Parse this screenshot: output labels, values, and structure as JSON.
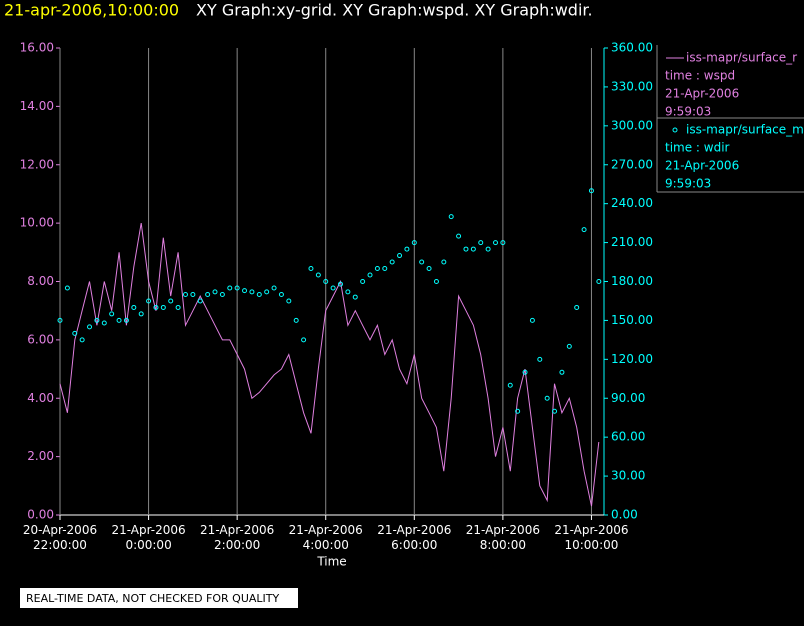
{
  "chart_data": {
    "type": "xy",
    "title_time": "21-apr-2006,10:00:00",
    "title": "XY Graph:xy-grid.  XY Graph:wspd.  XY Graph:wdir.",
    "x_label": "Time",
    "footer": "REAL-TIME DATA, NOT CHECKED FOR QUALITY",
    "grid": true,
    "xlim": [
      "2006-04-20T22:00",
      "2006-04-21T10:17"
    ],
    "xticks": [
      {
        "value": "2006-04-20T22:00",
        "label": "20-Apr-2006 22:00:00"
      },
      {
        "value": "2006-04-21T00:00",
        "label": "21-Apr-2006 0:00:00"
      },
      {
        "value": "2006-04-21T02:00",
        "label": "21-Apr-2006 2:00:00"
      },
      {
        "value": "2006-04-21T04:00",
        "label": "21-Apr-2006 4:00:00"
      },
      {
        "value": "2006-04-21T06:00",
        "label": "21-Apr-2006 6:00:00"
      },
      {
        "value": "2006-04-21T08:00",
        "label": "21-Apr-2006 8:00:00"
      },
      {
        "value": "2006-04-21T10:00",
        "label": "21-Apr-2006 10:00:00"
      }
    ],
    "ylim": [
      0,
      16
    ],
    "yticks": [
      {
        "value": 0,
        "label": "0.00"
      },
      {
        "value": 2,
        "label": "2.00"
      },
      {
        "value": 4,
        "label": "4.00"
      },
      {
        "value": 6,
        "label": "6.00"
      },
      {
        "value": 8,
        "label": "8.00"
      },
      {
        "value": 10,
        "label": "10.00"
      },
      {
        "value": 12,
        "label": "12.00"
      },
      {
        "value": 14,
        "label": "14.00"
      },
      {
        "value": 16,
        "label": "16.00"
      }
    ],
    "y2lim": [
      0,
      360
    ],
    "y2ticks": [
      {
        "value": 0,
        "label": "0.00"
      },
      {
        "value": 30,
        "label": "30.00"
      },
      {
        "value": 60,
        "label": "60.00"
      },
      {
        "value": 90,
        "label": "90.00"
      },
      {
        "value": 120,
        "label": "120.00"
      },
      {
        "value": 150,
        "label": "150.00"
      },
      {
        "value": 180,
        "label": "180.00"
      },
      {
        "value": 210,
        "label": "210.00"
      },
      {
        "value": 240,
        "label": "240.00"
      },
      {
        "value": 270,
        "label": "270.00"
      },
      {
        "value": 300,
        "label": "300.00"
      },
      {
        "value": 330,
        "label": "330.00"
      },
      {
        "value": 360,
        "label": "360.00"
      }
    ],
    "x": [
      "2006-04-20T22:00",
      "2006-04-20T22:10",
      "2006-04-20T22:20",
      "2006-04-20T22:30",
      "2006-04-20T22:40",
      "2006-04-20T22:50",
      "2006-04-20T23:00",
      "2006-04-20T23:10",
      "2006-04-20T23:20",
      "2006-04-20T23:30",
      "2006-04-20T23:40",
      "2006-04-20T23:50",
      "2006-04-21T00:00",
      "2006-04-21T00:10",
      "2006-04-21T00:20",
      "2006-04-21T00:30",
      "2006-04-21T00:40",
      "2006-04-21T00:50",
      "2006-04-21T01:00",
      "2006-04-21T01:10",
      "2006-04-21T01:20",
      "2006-04-21T01:30",
      "2006-04-21T01:40",
      "2006-04-21T01:50",
      "2006-04-21T02:00",
      "2006-04-21T02:10",
      "2006-04-21T02:20",
      "2006-04-21T02:30",
      "2006-04-21T02:40",
      "2006-04-21T02:50",
      "2006-04-21T03:00",
      "2006-04-21T03:10",
      "2006-04-21T03:20",
      "2006-04-21T03:30",
      "2006-04-21T03:40",
      "2006-04-21T03:50",
      "2006-04-21T04:00",
      "2006-04-21T04:10",
      "2006-04-21T04:20",
      "2006-04-21T04:30",
      "2006-04-21T04:40",
      "2006-04-21T04:50",
      "2006-04-21T05:00",
      "2006-04-21T05:10",
      "2006-04-21T05:20",
      "2006-04-21T05:30",
      "2006-04-21T05:40",
      "2006-04-21T05:50",
      "2006-04-21T06:00",
      "2006-04-21T06:10",
      "2006-04-21T06:20",
      "2006-04-21T06:30",
      "2006-04-21T06:40",
      "2006-04-21T06:50",
      "2006-04-21T07:00",
      "2006-04-21T07:10",
      "2006-04-21T07:20",
      "2006-04-21T07:30",
      "2006-04-21T07:40",
      "2006-04-21T07:50",
      "2006-04-21T08:00",
      "2006-04-21T08:10",
      "2006-04-21T08:20",
      "2006-04-21T08:30",
      "2006-04-21T08:40",
      "2006-04-21T08:50",
      "2006-04-21T09:00",
      "2006-04-21T09:10",
      "2006-04-21T09:20",
      "2006-04-21T09:30",
      "2006-04-21T09:40",
      "2006-04-21T09:50",
      "2006-04-21T10:00",
      "2006-04-21T10:10"
    ],
    "series": [
      {
        "name": "iss-mapr/surface_r",
        "color": "#e080e0",
        "kind": "line",
        "details": [
          "time : wspd",
          "21-Apr-2006",
          "9:59:03"
        ],
        "values": [
          4.5,
          3.5,
          6,
          7,
          8,
          6.5,
          8,
          7,
          9,
          6.5,
          8.5,
          10,
          8,
          7,
          9.5,
          7.5,
          9,
          6.5,
          7,
          7.5,
          7,
          6.5,
          6,
          6,
          5.5,
          5,
          4,
          4.2,
          4.5,
          4.8,
          5,
          5.5,
          4.5,
          3.5,
          2.8,
          5,
          7,
          7.5,
          8,
          6.5,
          7,
          6.5,
          6,
          6.5,
          5.5,
          6,
          5,
          4.5,
          5.5,
          4,
          3.5,
          3,
          1.5,
          4,
          7.5,
          7,
          6.5,
          5.5,
          4,
          2,
          3,
          1.5,
          4,
          5,
          3,
          1,
          0.5,
          4.5,
          3.5,
          4,
          3,
          1.5,
          0.3,
          2.5
        ]
      },
      {
        "name": "iss-mapr/surface_m",
        "color": "#00ffff",
        "kind": "scatter",
        "axis": "y2",
        "details": [
          "time : wdir",
          "21-Apr-2006",
          "9:59:03"
        ],
        "values": [
          150,
          175,
          140,
          135,
          145,
          150,
          148,
          155,
          150,
          150,
          160,
          155,
          165,
          160,
          160,
          165,
          160,
          170,
          170,
          165,
          170,
          172,
          170,
          175,
          175,
          173,
          172,
          170,
          172,
          175,
          170,
          165,
          150,
          135,
          190,
          185,
          180,
          175,
          178,
          172,
          168,
          180,
          185,
          190,
          190,
          195,
          200,
          205,
          210,
          195,
          190,
          180,
          195,
          230,
          215,
          205,
          205,
          210,
          205,
          210,
          210,
          100,
          80,
          110,
          150,
          120,
          90,
          80,
          110,
          130,
          160,
          220,
          250,
          180
        ]
      }
    ]
  }
}
